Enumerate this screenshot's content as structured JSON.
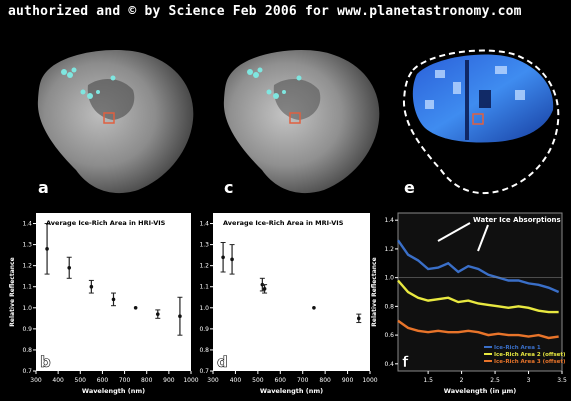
{
  "credit": "authorized and © by Science Feb 2006 for www.planetastronomy.com",
  "image_panels": [
    {
      "label": "a"
    },
    {
      "label": "c"
    },
    {
      "label": "e"
    }
  ],
  "colors": {
    "marker_cyan": "#7fe6e0",
    "roi_box": "#e06040",
    "ir1": "#3a6fc8",
    "ir2": "#e8e840",
    "ir3": "#e8742a"
  },
  "chart_data": [
    {
      "panel": "b",
      "type": "scatter",
      "title": "Average Ice-Rich Area in HRI-VIS",
      "xlabel": "Wavelength (nm)",
      "ylabel": "Relative Reflectance",
      "xlim": [
        300,
        1000
      ],
      "ylim": [
        0.7,
        1.45
      ],
      "xticks": [
        300,
        400,
        500,
        600,
        700,
        800,
        900,
        1000
      ],
      "yticks": [
        0.7,
        0.8,
        0.9,
        1.0,
        1.1,
        1.2,
        1.3,
        1.4
      ],
      "points": [
        {
          "x": 350,
          "y": 1.28,
          "err": 0.12
        },
        {
          "x": 450,
          "y": 1.19,
          "err": 0.05
        },
        {
          "x": 550,
          "y": 1.1,
          "err": 0.03
        },
        {
          "x": 650,
          "y": 1.04,
          "err": 0.03
        },
        {
          "x": 750,
          "y": 1.0,
          "err": 0.0
        },
        {
          "x": 850,
          "y": 0.97,
          "err": 0.02
        },
        {
          "x": 950,
          "y": 0.96,
          "err": 0.09
        }
      ]
    },
    {
      "panel": "d",
      "type": "scatter",
      "title": "Average Ice-Rich Area in MRI-VIS",
      "xlabel": "Wavelength (nm)",
      "ylabel": "",
      "xlim": [
        300,
        1000
      ],
      "ylim": [
        0.7,
        1.45
      ],
      "xticks": [
        300,
        400,
        500,
        600,
        700,
        800,
        900,
        1000
      ],
      "yticks": [
        0.7,
        0.8,
        0.9,
        1.0,
        1.1,
        1.2,
        1.3,
        1.4
      ],
      "points": [
        {
          "x": 345,
          "y": 1.24,
          "err": 0.07
        },
        {
          "x": 385,
          "y": 1.23,
          "err": 0.07
        },
        {
          "x": 520,
          "y": 1.11,
          "err": 0.03
        },
        {
          "x": 530,
          "y": 1.09,
          "err": 0.02
        },
        {
          "x": 750,
          "y": 1.0,
          "err": 0.0
        },
        {
          "x": 950,
          "y": 0.95,
          "err": 0.02
        }
      ]
    },
    {
      "panel": "f",
      "type": "line",
      "title": "",
      "annotation": "Water Ice Absorptions",
      "xlabel": "Wavelength (in µm)",
      "ylabel": "Relative Reflectance",
      "xlim": [
        1.05,
        3.5
      ],
      "ylim": [
        0.35,
        1.45
      ],
      "xticks": [
        1.5,
        2.0,
        2.5,
        3.0,
        3.5
      ],
      "yticks": [
        0.4,
        0.6,
        0.8,
        1.0,
        1.2,
        1.4
      ],
      "legend_position": "bottom-right",
      "series": [
        {
          "name": "Ice-Rich Area 1",
          "color": "#3a6fc8",
          "x": [
            1.05,
            1.2,
            1.35,
            1.5,
            1.65,
            1.8,
            1.95,
            2.1,
            2.25,
            2.4,
            2.55,
            2.7,
            2.85,
            3.0,
            3.15,
            3.3,
            3.45
          ],
          "y": [
            1.26,
            1.16,
            1.12,
            1.06,
            1.07,
            1.1,
            1.04,
            1.08,
            1.06,
            1.02,
            1.0,
            0.98,
            0.98,
            0.96,
            0.95,
            0.93,
            0.9
          ]
        },
        {
          "name": "Ice-Rich Area 2 (offset)",
          "color": "#e8e840",
          "x": [
            1.05,
            1.2,
            1.35,
            1.5,
            1.65,
            1.8,
            1.95,
            2.1,
            2.25,
            2.4,
            2.55,
            2.7,
            2.85,
            3.0,
            3.15,
            3.3,
            3.45
          ],
          "y": [
            0.98,
            0.9,
            0.86,
            0.84,
            0.85,
            0.86,
            0.83,
            0.84,
            0.82,
            0.81,
            0.8,
            0.79,
            0.8,
            0.79,
            0.77,
            0.76,
            0.76
          ]
        },
        {
          "name": "Ice-Rich Area 3 (offset)",
          "color": "#e8742a",
          "x": [
            1.05,
            1.2,
            1.35,
            1.5,
            1.65,
            1.8,
            1.95,
            2.1,
            2.25,
            2.4,
            2.55,
            2.7,
            2.85,
            3.0,
            3.15,
            3.3,
            3.45
          ],
          "y": [
            0.7,
            0.65,
            0.63,
            0.62,
            0.63,
            0.62,
            0.62,
            0.63,
            0.62,
            0.6,
            0.61,
            0.6,
            0.6,
            0.59,
            0.6,
            0.58,
            0.59
          ]
        }
      ]
    }
  ]
}
